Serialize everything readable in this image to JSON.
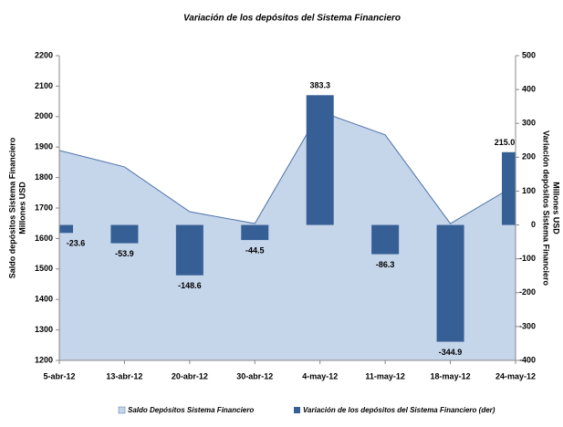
{
  "chart_data": {
    "type": "combo",
    "title": "Variación de los depósitos del Sistema Financiero",
    "categories": [
      "5-abr-12",
      "13-abr-12",
      "20-abr-12",
      "30-abr-12",
      "4-may-12",
      "11-may-12",
      "18-may-12",
      "24-may-12"
    ],
    "series": [
      {
        "name": "Saldo Depósitos Sistema Financiero",
        "type": "area",
        "color": "#c5d5ea",
        "line_color": "#4f73a8",
        "values": [
          1889,
          1835,
          1688,
          1649,
          2017,
          1940,
          1649,
          1775
        ]
      },
      {
        "name": "Variación de los depósitos del Sistema Financiero (der)",
        "type": "bar",
        "axis": "y2",
        "color": "#365f96",
        "values": [
          -23.6,
          -53.9,
          -148.6,
          -44.5,
          383.3,
          -86.3,
          -344.9,
          215.0
        ],
        "value_labels": [
          "-23.6",
          "-53.9",
          "-148.6",
          "-44.5",
          "383.3",
          "-86.3",
          "-344.9",
          "215.0"
        ]
      }
    ],
    "ylabel": [
      "Saldo depósitos Sistema Financiero",
      "Millones USD"
    ],
    "y2label": [
      "Variación depósitos Sistema Financiero",
      "Millones USD"
    ],
    "ylim": [
      1200,
      2200
    ],
    "yticks": [
      1200,
      1300,
      1400,
      1500,
      1600,
      1700,
      1800,
      1900,
      2000,
      2100,
      2200
    ],
    "y2lim": [
      -400,
      500
    ],
    "y2ticks": [
      -400,
      -300,
      -200,
      -100,
      0,
      100,
      200,
      300,
      400,
      500
    ],
    "grid": false,
    "legend": "bottom"
  }
}
